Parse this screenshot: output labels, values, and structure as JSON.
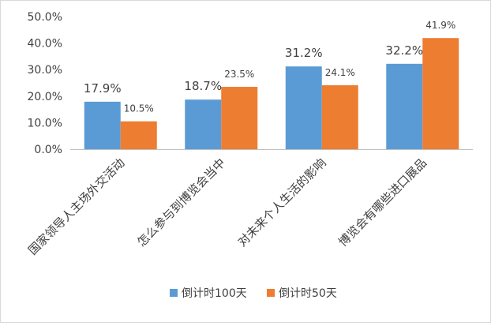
{
  "chart_data": {
    "type": "bar",
    "categories": [
      "国家领导人主场外交活动",
      "怎么参与到博览会当中",
      "对未来个人生活的影响",
      "博览会有哪些进口展品"
    ],
    "series": [
      {
        "name": "倒计时100天",
        "values": [
          17.9,
          18.7,
          31.2,
          32.2
        ],
        "labels": [
          "17.9%",
          "18.7%",
          "31.2%",
          "32.2%"
        ],
        "color": "#5b9bd5"
      },
      {
        "name": "倒计时50天",
        "values": [
          10.5,
          23.5,
          24.1,
          41.9
        ],
        "labels": [
          "10.5%",
          "23.5%",
          "24.1%",
          "41.9%"
        ],
        "color": "#ed7d31"
      }
    ],
    "y_ticks": [
      "0.0%",
      "10.0%",
      "20.0%",
      "30.0%",
      "40.0%",
      "50.0%"
    ],
    "ylim": [
      0,
      50
    ],
    "grid": false,
    "legend_position": "bottom",
    "title": "",
    "xlabel": "",
    "ylabel": ""
  }
}
